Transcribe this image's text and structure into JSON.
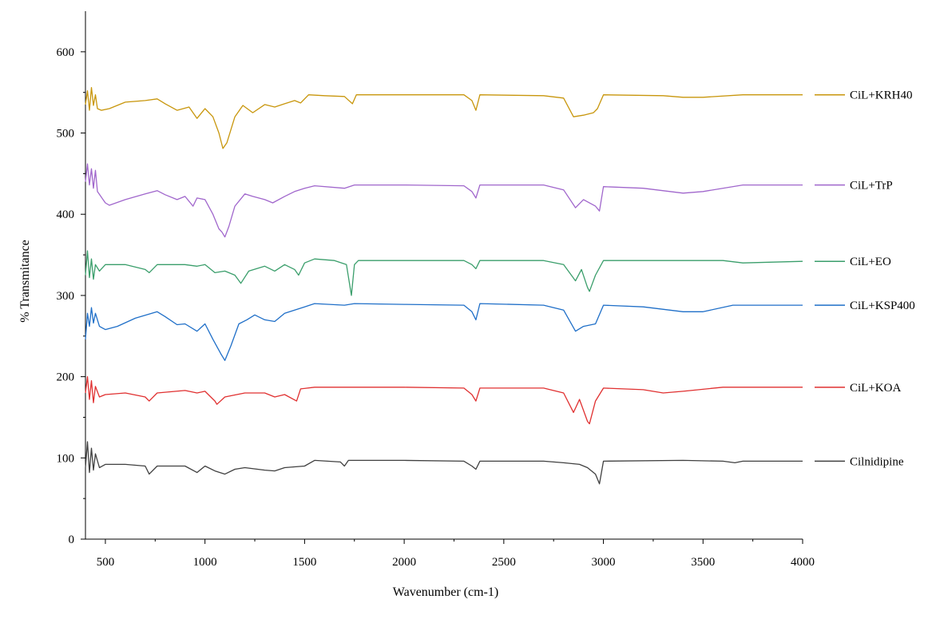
{
  "chart_data": {
    "type": "line",
    "title": "",
    "xlabel": "Wavenumber (cm-1)",
    "ylabel": "% Transmitance",
    "xlim": [
      400,
      4000
    ],
    "ylim": [
      0,
      650
    ],
    "x_ticks": [
      500,
      1000,
      1500,
      2000,
      2500,
      3000,
      3500,
      4000
    ],
    "y_ticks": [
      0,
      100,
      200,
      300,
      400,
      500,
      600
    ],
    "grid": false,
    "legend_position": "right",
    "series": [
      {
        "name": "CiL+KRH40",
        "color": "#c8960c",
        "points": [
          [
            400,
            535
          ],
          [
            410,
            552
          ],
          [
            420,
            528
          ],
          [
            430,
            556
          ],
          [
            440,
            534
          ],
          [
            450,
            547
          ],
          [
            460,
            530
          ],
          [
            480,
            528
          ],
          [
            520,
            530
          ],
          [
            600,
            538
          ],
          [
            700,
            540
          ],
          [
            760,
            542
          ],
          [
            800,
            536
          ],
          [
            860,
            528
          ],
          [
            920,
            532
          ],
          [
            960,
            518
          ],
          [
            1000,
            530
          ],
          [
            1040,
            520
          ],
          [
            1070,
            500
          ],
          [
            1090,
            481
          ],
          [
            1110,
            488
          ],
          [
            1150,
            520
          ],
          [
            1190,
            534
          ],
          [
            1240,
            525
          ],
          [
            1300,
            535
          ],
          [
            1350,
            532
          ],
          [
            1400,
            536
          ],
          [
            1450,
            540
          ],
          [
            1480,
            537
          ],
          [
            1520,
            547
          ],
          [
            1600,
            546
          ],
          [
            1700,
            545
          ],
          [
            1740,
            536
          ],
          [
            1760,
            547
          ],
          [
            2000,
            547
          ],
          [
            2300,
            547
          ],
          [
            2340,
            540
          ],
          [
            2360,
            528
          ],
          [
            2380,
            547
          ],
          [
            2700,
            546
          ],
          [
            2800,
            543
          ],
          [
            2850,
            520
          ],
          [
            2900,
            522
          ],
          [
            2950,
            525
          ],
          [
            2970,
            530
          ],
          [
            3000,
            547
          ],
          [
            3300,
            546
          ],
          [
            3400,
            544
          ],
          [
            3500,
            544
          ],
          [
            3700,
            547
          ],
          [
            4000,
            547
          ]
        ]
      },
      {
        "name": "CiL+TrP",
        "color": "#a066cc",
        "points": [
          [
            400,
            440
          ],
          [
            410,
            462
          ],
          [
            420,
            436
          ],
          [
            430,
            456
          ],
          [
            440,
            432
          ],
          [
            450,
            454
          ],
          [
            460,
            428
          ],
          [
            500,
            414
          ],
          [
            520,
            411
          ],
          [
            600,
            418
          ],
          [
            700,
            425
          ],
          [
            760,
            429
          ],
          [
            800,
            424
          ],
          [
            860,
            418
          ],
          [
            900,
            422
          ],
          [
            940,
            410
          ],
          [
            960,
            420
          ],
          [
            1000,
            418
          ],
          [
            1040,
            400
          ],
          [
            1070,
            382
          ],
          [
            1085,
            378
          ],
          [
            1100,
            372
          ],
          [
            1120,
            385
          ],
          [
            1150,
            410
          ],
          [
            1200,
            425
          ],
          [
            1240,
            422
          ],
          [
            1300,
            418
          ],
          [
            1340,
            414
          ],
          [
            1400,
            422
          ],
          [
            1450,
            428
          ],
          [
            1500,
            432
          ],
          [
            1550,
            435
          ],
          [
            1700,
            432
          ],
          [
            1750,
            436
          ],
          [
            2000,
            436
          ],
          [
            2300,
            435
          ],
          [
            2340,
            428
          ],
          [
            2360,
            420
          ],
          [
            2380,
            436
          ],
          [
            2700,
            436
          ],
          [
            2800,
            430
          ],
          [
            2860,
            408
          ],
          [
            2900,
            418
          ],
          [
            2960,
            410
          ],
          [
            2980,
            404
          ],
          [
            3000,
            434
          ],
          [
            3200,
            432
          ],
          [
            3400,
            426
          ],
          [
            3500,
            428
          ],
          [
            3700,
            436
          ],
          [
            4000,
            436
          ]
        ]
      },
      {
        "name": "CiL+EO",
        "color": "#3a9e6b",
        "points": [
          [
            400,
            325
          ],
          [
            410,
            355
          ],
          [
            420,
            322
          ],
          [
            430,
            345
          ],
          [
            440,
            320
          ],
          [
            450,
            338
          ],
          [
            470,
            330
          ],
          [
            500,
            338
          ],
          [
            600,
            338
          ],
          [
            700,
            332
          ],
          [
            720,
            328
          ],
          [
            760,
            338
          ],
          [
            900,
            338
          ],
          [
            960,
            336
          ],
          [
            1000,
            338
          ],
          [
            1050,
            328
          ],
          [
            1100,
            330
          ],
          [
            1150,
            325
          ],
          [
            1180,
            315
          ],
          [
            1220,
            330
          ],
          [
            1300,
            336
          ],
          [
            1350,
            330
          ],
          [
            1400,
            338
          ],
          [
            1450,
            332
          ],
          [
            1470,
            325
          ],
          [
            1500,
            340
          ],
          [
            1550,
            345
          ],
          [
            1650,
            343
          ],
          [
            1710,
            338
          ],
          [
            1735,
            300
          ],
          [
            1750,
            338
          ],
          [
            1770,
            343
          ],
          [
            2300,
            343
          ],
          [
            2340,
            338
          ],
          [
            2360,
            333
          ],
          [
            2380,
            343
          ],
          [
            2700,
            343
          ],
          [
            2800,
            338
          ],
          [
            2860,
            318
          ],
          [
            2890,
            332
          ],
          [
            2920,
            310
          ],
          [
            2930,
            305
          ],
          [
            2960,
            325
          ],
          [
            3000,
            343
          ],
          [
            3600,
            343
          ],
          [
            3700,
            340
          ],
          [
            4000,
            342
          ]
        ]
      },
      {
        "name": "CiL+KSP400",
        "color": "#1f6fc8",
        "points": [
          [
            400,
            246
          ],
          [
            410,
            278
          ],
          [
            420,
            262
          ],
          [
            430,
            285
          ],
          [
            440,
            266
          ],
          [
            450,
            278
          ],
          [
            470,
            262
          ],
          [
            500,
            258
          ],
          [
            560,
            262
          ],
          [
            650,
            272
          ],
          [
            760,
            280
          ],
          [
            800,
            274
          ],
          [
            860,
            264
          ],
          [
            900,
            265
          ],
          [
            960,
            256
          ],
          [
            1000,
            265
          ],
          [
            1040,
            246
          ],
          [
            1080,
            228
          ],
          [
            1100,
            220
          ],
          [
            1130,
            238
          ],
          [
            1170,
            265
          ],
          [
            1210,
            270
          ],
          [
            1250,
            276
          ],
          [
            1300,
            270
          ],
          [
            1350,
            268
          ],
          [
            1400,
            278
          ],
          [
            1450,
            282
          ],
          [
            1500,
            286
          ],
          [
            1550,
            290
          ],
          [
            1700,
            288
          ],
          [
            1750,
            290
          ],
          [
            2000,
            289
          ],
          [
            2300,
            288
          ],
          [
            2340,
            280
          ],
          [
            2360,
            270
          ],
          [
            2380,
            290
          ],
          [
            2700,
            288
          ],
          [
            2800,
            282
          ],
          [
            2860,
            256
          ],
          [
            2900,
            262
          ],
          [
            2960,
            265
          ],
          [
            3000,
            288
          ],
          [
            3200,
            286
          ],
          [
            3400,
            280
          ],
          [
            3500,
            280
          ],
          [
            3650,
            288
          ],
          [
            4000,
            288
          ]
        ]
      },
      {
        "name": "CiL+KOA",
        "color": "#e03030",
        "points": [
          [
            400,
            180
          ],
          [
            410,
            200
          ],
          [
            420,
            172
          ],
          [
            430,
            195
          ],
          [
            440,
            168
          ],
          [
            450,
            188
          ],
          [
            470,
            175
          ],
          [
            500,
            178
          ],
          [
            600,
            180
          ],
          [
            700,
            175
          ],
          [
            720,
            170
          ],
          [
            760,
            180
          ],
          [
            900,
            183
          ],
          [
            960,
            180
          ],
          [
            1000,
            182
          ],
          [
            1050,
            170
          ],
          [
            1060,
            166
          ],
          [
            1100,
            175
          ],
          [
            1200,
            180
          ],
          [
            1300,
            180
          ],
          [
            1350,
            175
          ],
          [
            1400,
            178
          ],
          [
            1460,
            170
          ],
          [
            1480,
            185
          ],
          [
            1550,
            187
          ],
          [
            1700,
            187
          ],
          [
            2000,
            187
          ],
          [
            2300,
            186
          ],
          [
            2340,
            178
          ],
          [
            2360,
            170
          ],
          [
            2380,
            186
          ],
          [
            2700,
            186
          ],
          [
            2800,
            180
          ],
          [
            2850,
            156
          ],
          [
            2880,
            172
          ],
          [
            2920,
            145
          ],
          [
            2930,
            142
          ],
          [
            2960,
            170
          ],
          [
            3000,
            186
          ],
          [
            3200,
            184
          ],
          [
            3300,
            180
          ],
          [
            3400,
            182
          ],
          [
            3600,
            187
          ],
          [
            4000,
            187
          ]
        ]
      },
      {
        "name": "Cilnidipine",
        "color": "#404040",
        "points": [
          [
            400,
            88
          ],
          [
            410,
            120
          ],
          [
            420,
            82
          ],
          [
            430,
            112
          ],
          [
            440,
            85
          ],
          [
            450,
            105
          ],
          [
            470,
            88
          ],
          [
            500,
            92
          ],
          [
            600,
            92
          ],
          [
            700,
            90
          ],
          [
            720,
            80
          ],
          [
            760,
            90
          ],
          [
            900,
            90
          ],
          [
            960,
            82
          ],
          [
            1000,
            90
          ],
          [
            1050,
            84
          ],
          [
            1100,
            80
          ],
          [
            1150,
            86
          ],
          [
            1200,
            88
          ],
          [
            1300,
            85
          ],
          [
            1350,
            84
          ],
          [
            1400,
            88
          ],
          [
            1500,
            90
          ],
          [
            1550,
            97
          ],
          [
            1680,
            95
          ],
          [
            1700,
            90
          ],
          [
            1720,
            97
          ],
          [
            2000,
            97
          ],
          [
            2300,
            96
          ],
          [
            2340,
            90
          ],
          [
            2360,
            86
          ],
          [
            2380,
            96
          ],
          [
            2700,
            96
          ],
          [
            2800,
            94
          ],
          [
            2880,
            92
          ],
          [
            2920,
            88
          ],
          [
            2960,
            80
          ],
          [
            2980,
            68
          ],
          [
            3000,
            96
          ],
          [
            3400,
            97
          ],
          [
            3600,
            96
          ],
          [
            3660,
            94
          ],
          [
            3700,
            96
          ],
          [
            4000,
            96
          ]
        ]
      }
    ]
  }
}
